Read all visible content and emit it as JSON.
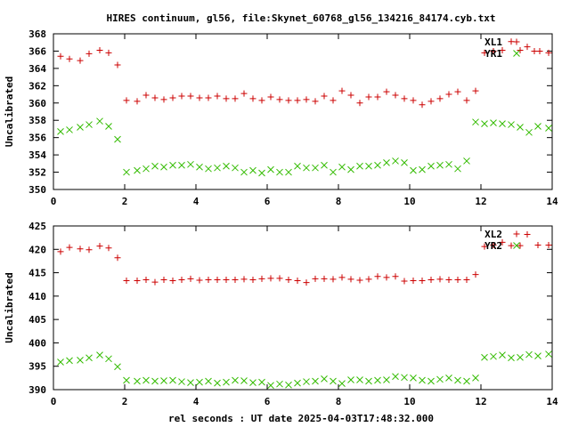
{
  "title": "HIRES continuum, gl56, file:Skynet_60768_gl56_134216_84174.cyb.txt",
  "xlabel": "rel seconds : UT date 2025-04-03T17:48:32.000",
  "colors": {
    "xl": "#cc0000",
    "yr": "#33bb00",
    "axis": "#000000"
  },
  "chart_data": [
    {
      "type": "scatter",
      "ylabel": "Uncalibrated",
      "xlim": [
        0,
        14
      ],
      "ylim": [
        350,
        368
      ],
      "xticks": [
        0,
        2,
        4,
        6,
        8,
        10,
        12,
        14
      ],
      "yticks": [
        350,
        352,
        354,
        356,
        358,
        360,
        362,
        364,
        366,
        368
      ],
      "legend_position": "top-right",
      "grid": false,
      "series": [
        {
          "name": "XL1",
          "marker": "plus",
          "color": "#cc0000",
          "x": [
            0.2,
            0.45,
            0.75,
            1.0,
            1.3,
            1.55,
            1.8,
            2.05,
            2.35,
            2.6,
            2.85,
            3.1,
            3.35,
            3.6,
            3.85,
            4.1,
            4.35,
            4.6,
            4.85,
            5.1,
            5.35,
            5.6,
            5.85,
            6.1,
            6.35,
            6.6,
            6.85,
            7.1,
            7.35,
            7.6,
            7.85,
            8.1,
            8.35,
            8.6,
            8.85,
            9.1,
            9.35,
            9.6,
            9.85,
            10.1,
            10.35,
            10.6,
            10.85,
            11.1,
            11.35,
            11.6,
            11.85,
            12.1,
            12.35,
            12.6,
            12.85,
            13.1,
            13.3,
            13.5,
            13.65,
            13.9
          ],
          "y": [
            365.4,
            365.1,
            364.9,
            365.7,
            366.1,
            365.8,
            364.4,
            360.3,
            360.2,
            360.9,
            360.6,
            360.4,
            360.6,
            360.8,
            360.8,
            360.6,
            360.6,
            360.8,
            360.5,
            360.5,
            361.1,
            360.5,
            360.3,
            360.7,
            360.4,
            360.3,
            360.3,
            360.4,
            360.2,
            360.8,
            360.3,
            361.4,
            360.9,
            360.0,
            360.7,
            360.7,
            361.3,
            360.9,
            360.5,
            360.3,
            359.8,
            360.2,
            360.5,
            361.0,
            361.3,
            360.3,
            361.4,
            365.8,
            366.0,
            366.1,
            367.1,
            366.1,
            366.5,
            366.0,
            366.0,
            365.8
          ]
        },
        {
          "name": "YR1",
          "marker": "cross",
          "color": "#33bb00",
          "x": [
            0.2,
            0.45,
            0.75,
            1.0,
            1.3,
            1.55,
            1.8,
            2.05,
            2.35,
            2.6,
            2.85,
            3.1,
            3.35,
            3.6,
            3.85,
            4.1,
            4.35,
            4.6,
            4.85,
            5.1,
            5.35,
            5.6,
            5.85,
            6.1,
            6.35,
            6.6,
            6.85,
            7.1,
            7.35,
            7.6,
            7.85,
            8.1,
            8.35,
            8.6,
            8.85,
            9.1,
            9.35,
            9.6,
            9.85,
            10.1,
            10.35,
            10.6,
            10.85,
            11.1,
            11.35,
            11.6,
            11.85,
            12.1,
            12.35,
            12.6,
            12.85,
            13.1,
            13.35,
            13.6,
            13.9
          ],
          "y": [
            356.7,
            356.9,
            357.2,
            357.5,
            357.9,
            357.3,
            355.8,
            352.0,
            352.2,
            352.4,
            352.7,
            352.6,
            352.8,
            352.8,
            352.9,
            352.6,
            352.4,
            352.5,
            352.7,
            352.5,
            352.0,
            352.2,
            351.9,
            352.3,
            352.0,
            352.0,
            352.7,
            352.5,
            352.5,
            352.8,
            352.0,
            352.6,
            352.3,
            352.7,
            352.7,
            352.8,
            353.1,
            353.3,
            353.1,
            352.2,
            352.3,
            352.7,
            352.8,
            352.9,
            352.4,
            353.3,
            357.8,
            357.6,
            357.7,
            357.6,
            357.5,
            357.2,
            356.6,
            357.3,
            357.1
          ]
        }
      ]
    },
    {
      "type": "scatter",
      "ylabel": "Uncalibrated",
      "xlim": [
        0,
        14
      ],
      "ylim": [
        390,
        425
      ],
      "xticks": [
        0,
        2,
        4,
        6,
        8,
        10,
        12,
        14
      ],
      "yticks": [
        390,
        395,
        400,
        405,
        410,
        415,
        420,
        425
      ],
      "legend_position": "top-right",
      "grid": false,
      "series": [
        {
          "name": "XL2",
          "marker": "plus",
          "color": "#cc0000",
          "x": [
            0.2,
            0.45,
            0.75,
            1.0,
            1.3,
            1.55,
            1.8,
            2.05,
            2.35,
            2.6,
            2.85,
            3.1,
            3.35,
            3.6,
            3.85,
            4.1,
            4.35,
            4.6,
            4.85,
            5.1,
            5.35,
            5.6,
            5.85,
            6.1,
            6.35,
            6.6,
            6.85,
            7.1,
            7.35,
            7.6,
            7.85,
            8.1,
            8.35,
            8.6,
            8.85,
            9.1,
            9.35,
            9.6,
            9.85,
            10.1,
            10.35,
            10.6,
            10.85,
            11.1,
            11.35,
            11.6,
            11.85,
            12.1,
            12.35,
            12.6,
            12.85,
            13.1,
            13.3,
            13.6,
            13.9
          ],
          "y": [
            419.5,
            420.4,
            420.1,
            419.9,
            420.7,
            420.3,
            418.2,
            413.3,
            413.3,
            413.5,
            413.0,
            413.5,
            413.3,
            413.5,
            413.7,
            413.4,
            413.5,
            413.5,
            413.5,
            413.5,
            413.6,
            413.5,
            413.7,
            413.8,
            413.8,
            413.5,
            413.3,
            412.9,
            413.7,
            413.7,
            413.6,
            414.0,
            413.6,
            413.4,
            413.6,
            414.2,
            414.0,
            414.2,
            413.2,
            413.3,
            413.3,
            413.5,
            413.6,
            413.5,
            413.5,
            413.5,
            414.6,
            420.6,
            420.9,
            421.5,
            420.8,
            420.8,
            423.2,
            420.9,
            420.9
          ]
        },
        {
          "name": "YR2",
          "marker": "cross",
          "color": "#33bb00",
          "x": [
            0.2,
            0.45,
            0.75,
            1.0,
            1.3,
            1.55,
            1.8,
            2.05,
            2.35,
            2.6,
            2.85,
            3.1,
            3.35,
            3.6,
            3.85,
            4.1,
            4.35,
            4.6,
            4.85,
            5.1,
            5.35,
            5.6,
            5.85,
            6.1,
            6.35,
            6.6,
            6.85,
            7.1,
            7.35,
            7.6,
            7.85,
            8.1,
            8.35,
            8.6,
            8.85,
            9.1,
            9.35,
            9.6,
            9.85,
            10.1,
            10.35,
            10.6,
            10.85,
            11.1,
            11.35,
            11.6,
            11.85,
            12.1,
            12.35,
            12.6,
            12.85,
            13.1,
            13.35,
            13.6,
            13.9
          ],
          "y": [
            395.9,
            396.2,
            396.3,
            396.8,
            397.4,
            396.6,
            394.9,
            392.0,
            391.8,
            392.0,
            391.8,
            391.9,
            392.0,
            391.7,
            391.5,
            391.6,
            391.8,
            391.4,
            391.6,
            392.0,
            391.9,
            391.5,
            391.6,
            390.9,
            391.2,
            391.0,
            391.4,
            391.7,
            391.8,
            392.3,
            391.8,
            391.3,
            392.1,
            392.1,
            391.8,
            392.0,
            392.1,
            392.8,
            392.6,
            392.5,
            392.0,
            391.8,
            392.2,
            392.5,
            392.0,
            391.8,
            392.5,
            396.9,
            397.1,
            397.4,
            396.8,
            396.9,
            397.5,
            397.2,
            397.6
          ]
        }
      ]
    }
  ]
}
